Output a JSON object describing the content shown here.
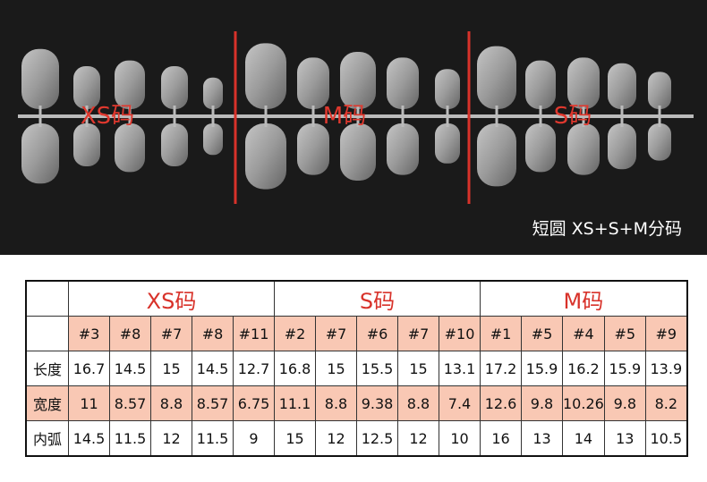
{
  "top": {
    "labels": [
      "XS码",
      "M码",
      "S码"
    ],
    "caption": "短圆 XS+S+M分码"
  },
  "table": {
    "groups": [
      "XS码",
      "S码",
      "M码"
    ],
    "sizes": [
      "#3",
      "#8",
      "#7",
      "#8",
      "#11",
      "#2",
      "#7",
      "#6",
      "#7",
      "#10",
      "#1",
      "#5",
      "#4",
      "#5",
      "#9"
    ],
    "rows": [
      {
        "label": "长度",
        "values": [
          "16.7",
          "14.5",
          "15",
          "14.5",
          "12.7",
          "16.8",
          "15",
          "15.5",
          "15",
          "13.1",
          "17.2",
          "15.9",
          "16.2",
          "15.9",
          "13.9"
        ]
      },
      {
        "label": "宽度",
        "values": [
          "11",
          "8.57",
          "8.8",
          "8.57",
          "6.75",
          "11.1",
          "8.8",
          "9.38",
          "8.8",
          "7.4",
          "12.6",
          "9.8",
          "10.26",
          "9.8",
          "8.2"
        ]
      },
      {
        "label": "内弧",
        "values": [
          "14.5",
          "11.5",
          "12",
          "11.5",
          "9",
          "15",
          "12",
          "12.5",
          "12",
          "10",
          "16",
          "13",
          "14",
          "13",
          "10.5"
        ]
      }
    ]
  }
}
